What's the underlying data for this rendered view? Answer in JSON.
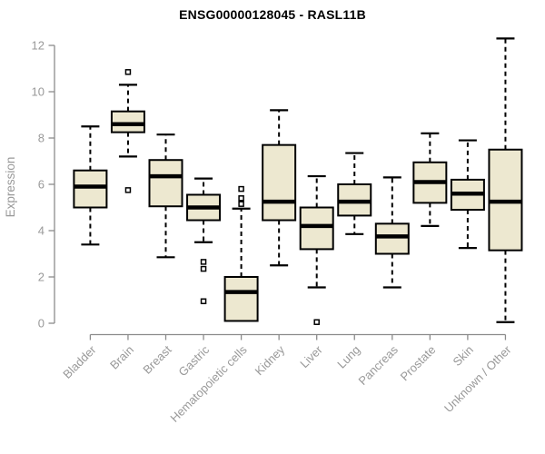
{
  "chart": {
    "title": "ENSG00000128045 - RASL11B",
    "ylabel": "Expression"
  },
  "chart_data": {
    "type": "boxplot",
    "title": "ENSG00000128045 - RASL11B",
    "xlabel": "",
    "ylabel": "Expression",
    "ylim": [
      0,
      12.4
    ],
    "yticks": [
      0,
      2,
      4,
      6,
      8,
      10,
      12
    ],
    "grid": false,
    "legend": false,
    "categories": [
      "Bladder",
      "Brain",
      "Breast",
      "Gastric",
      "Hematopoietic cells",
      "Kidney",
      "Liver",
      "Lung",
      "Pancreas",
      "Prostate",
      "Skin",
      "Unknown / Other"
    ],
    "series": [
      {
        "category": "Bladder",
        "whisker_low": 3.4,
        "q1": 5.0,
        "median": 5.9,
        "q3": 6.6,
        "whisker_high": 8.5,
        "outliers": []
      },
      {
        "category": "Brain",
        "whisker_low": 7.2,
        "q1": 8.25,
        "median": 8.6,
        "q3": 9.15,
        "whisker_high": 10.3,
        "outliers": [
          10.85,
          5.75
        ]
      },
      {
        "category": "Breast",
        "whisker_low": 2.85,
        "q1": 5.05,
        "median": 6.35,
        "q3": 7.05,
        "whisker_high": 8.15,
        "outliers": []
      },
      {
        "category": "Gastric",
        "whisker_low": 3.5,
        "q1": 4.45,
        "median": 5.0,
        "q3": 5.55,
        "whisker_high": 6.25,
        "outliers": [
          2.65,
          2.35,
          0.95
        ]
      },
      {
        "category": "Hematopoietic cells",
        "whisker_low": 0.1,
        "q1": 0.1,
        "median": 1.35,
        "q3": 2.0,
        "whisker_high": 4.95,
        "outliers": [
          5.8,
          5.4,
          5.15
        ]
      },
      {
        "category": "Kidney",
        "whisker_low": 2.5,
        "q1": 4.45,
        "median": 5.25,
        "q3": 7.7,
        "whisker_high": 9.2,
        "outliers": []
      },
      {
        "category": "Liver",
        "whisker_low": 1.55,
        "q1": 3.2,
        "median": 4.2,
        "q3": 5.0,
        "whisker_high": 6.35,
        "outliers": [
          0.05
        ]
      },
      {
        "category": "Lung",
        "whisker_low": 3.85,
        "q1": 4.65,
        "median": 5.25,
        "q3": 6.0,
        "whisker_high": 7.35,
        "outliers": []
      },
      {
        "category": "Pancreas",
        "whisker_low": 1.55,
        "q1": 3.0,
        "median": 3.75,
        "q3": 4.3,
        "whisker_high": 6.3,
        "outliers": []
      },
      {
        "category": "Prostate",
        "whisker_low": 4.2,
        "q1": 5.2,
        "median": 6.1,
        "q3": 6.95,
        "whisker_high": 8.2,
        "outliers": []
      },
      {
        "category": "Skin",
        "whisker_low": 3.25,
        "q1": 4.9,
        "median": 5.6,
        "q3": 6.2,
        "whisker_high": 7.9,
        "outliers": []
      },
      {
        "category": "Unknown / Other",
        "whisker_low": 0.05,
        "q1": 3.15,
        "median": 5.25,
        "q3": 7.5,
        "whisker_high": 12.3,
        "outliers": []
      }
    ],
    "style": {
      "box_fill": "#EDE8D0",
      "box_border": "#000000",
      "median_color": "#000000",
      "whisker_color": "#000000",
      "outlier_border": "#000000",
      "axis_color": "#8B8B8B",
      "tick_label_color": "#999999",
      "title_color": "#000000",
      "background": "#FFFFFF"
    }
  }
}
